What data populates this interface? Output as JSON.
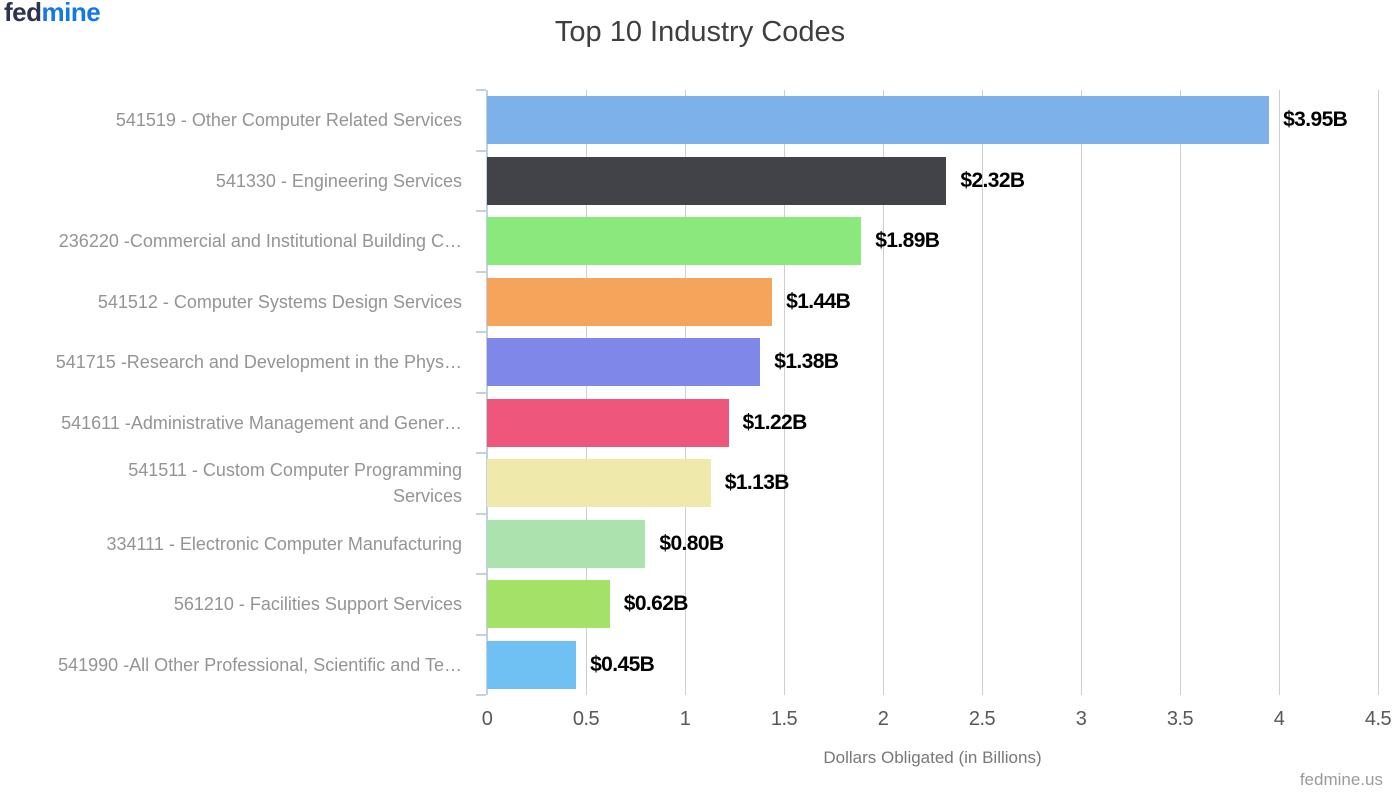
{
  "brand": {
    "logo_fed": "fed",
    "logo_mine": "mine",
    "footer_link": "fedmine.us"
  },
  "chart_data": {
    "type": "bar",
    "orientation": "horizontal",
    "title": "Top 10 Industry Codes",
    "xlabel": "Dollars Obligated (in Billions)",
    "xlim": [
      0,
      4.5
    ],
    "xticks": [
      0,
      0.5,
      1,
      1.5,
      2,
      2.5,
      3,
      3.5,
      4,
      4.5
    ],
    "xtick_labels": [
      "0",
      "0.5",
      "1",
      "1.5",
      "2",
      "2.5",
      "3",
      "3.5",
      "4",
      "4.5"
    ],
    "grid": true,
    "legend": false,
    "categories": [
      "541519 - Other Computer Related Services",
      "541330 - Engineering Services",
      "236220 -Commercial and Institutional Building C…",
      "541512 - Computer Systems Design Services",
      "541715 -Research and Development in the Phys…",
      "541611 -Administrative Management and Gener…",
      "541511 - Custom Computer Programming\nServices",
      "334111 - Electronic Computer Manufacturing",
      "561210 - Facilities Support Services",
      "541990 -All Other Professional, Scientific and Te…"
    ],
    "values": [
      3.95,
      2.32,
      1.89,
      1.44,
      1.38,
      1.22,
      1.13,
      0.8,
      0.62,
      0.45
    ],
    "value_labels": [
      "$3.95B",
      "$2.32B",
      "$1.89B",
      "$1.44B",
      "$1.38B",
      "$1.22B",
      "$1.13B",
      "$0.80B",
      "$0.62B",
      "$0.45B"
    ],
    "bar_colors": [
      "#7cb1e9",
      "#424349",
      "#8be87d",
      "#f6a35b",
      "#7f87e8",
      "#ef567b",
      "#f0e9ac",
      "#abe2ad",
      "#a3e169",
      "#6ec1f2"
    ],
    "axis_color": "#c2d1e2",
    "gridline_color": "#cecece"
  }
}
